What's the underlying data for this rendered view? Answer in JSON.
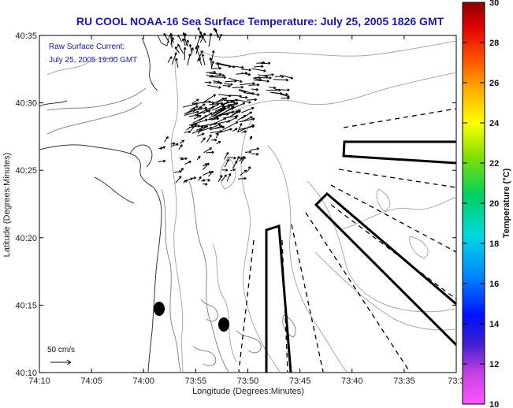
{
  "title": "RU COOL  NOAA-16  Sea Surface Temperature:  July 25, 2005 1826 GMT",
  "annotation": {
    "line1": "Raw Surface Current:",
    "line2": "July 25, 2005 19:00 GMT"
  },
  "scale_label": "50 cm/s",
  "colors": {
    "title": "#1a1aa6",
    "coast": "#333333",
    "contour": "#888888",
    "bathy": "#aaaaaa"
  },
  "chart_data": {
    "type": "map",
    "xlabel": "Longitude (Degrees:Minutes)",
    "ylabel": "Latitude (Degrees:Minutes)",
    "x_ticks": [
      "74:10",
      "74:05",
      "74:00",
      "73:55",
      "73:50",
      "73:45",
      "73:40",
      "73:35",
      "73:3"
    ],
    "y_ticks": [
      "40:35",
      "40:30",
      "40:25",
      "40:20",
      "40:15",
      "40:10"
    ],
    "xlim": [
      -74.1667,
      -73.5
    ],
    "ylim": [
      40.1667,
      40.5833
    ],
    "colorbar": {
      "label": "Temperature (°C)",
      "ticks": [
        "30",
        "28",
        "26",
        "24",
        "22",
        "20",
        "18",
        "16",
        "14",
        "12",
        "10"
      ],
      "range": [
        10,
        30
      ]
    }
  }
}
